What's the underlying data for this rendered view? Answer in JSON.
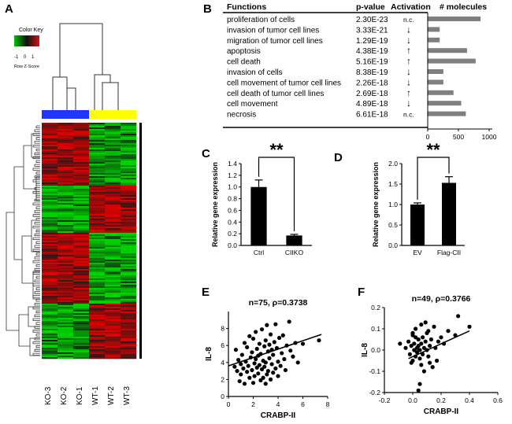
{
  "panels": {
    "A": "A",
    "B": "B",
    "C": "C",
    "D": "D",
    "E": "E",
    "F": "F"
  },
  "color_key": {
    "title": "Color Key",
    "ticks": [
      "-1",
      "0",
      "1"
    ],
    "caption": "Row Z-Score",
    "colors": {
      "low": "#00c000",
      "mid": "#111111",
      "high": "#d01515"
    }
  },
  "heatmap": {
    "samples": [
      "KO-3",
      "KO-2",
      "KO-1",
      "WT-1",
      "WT-2",
      "WT-3"
    ],
    "group_colors": {
      "KO": "#1f35ff",
      "WT": "#ffff00"
    }
  },
  "functions_table": {
    "headers": {
      "functions": "Functions",
      "pvalue": "p-value",
      "activation": "Activation",
      "molecules": "# molecules"
    },
    "rows": [
      {
        "function": "proliferation of cells",
        "pvalue": "2.30E-23",
        "activation": "n.c.",
        "molecules": 860
      },
      {
        "function": "invasion of tumor cell lines",
        "pvalue": "3.33E-21",
        "activation": "↓",
        "molecules": 195
      },
      {
        "function": "migration of tumor cell lines",
        "pvalue": "1.29E-19",
        "activation": "↓",
        "molecules": 195
      },
      {
        "function": "apoptosis",
        "pvalue": "4.38E-19",
        "activation": "↑",
        "molecules": 640
      },
      {
        "function": "cell death",
        "pvalue": "5.16E-19",
        "activation": "↑",
        "molecules": 780
      },
      {
        "function": "invasion of cells",
        "pvalue": "8.38E-19",
        "activation": "↓",
        "molecules": 255
      },
      {
        "function": "cell movement of tumor cell lines",
        "pvalue": "2.26E-18",
        "activation": "↓",
        "molecules": 255
      },
      {
        "function": "cell death of tumor cell lines",
        "pvalue": "2.69E-18",
        "activation": "↑",
        "molecules": 420
      },
      {
        "function": "cell movement",
        "pvalue": "4.89E-18",
        "activation": "↓",
        "molecules": 545
      },
      {
        "function": "necrosis",
        "pvalue": "6.61E-18",
        "activation": "n.c.",
        "molecules": 620
      }
    ],
    "axis_ticks": [
      "0",
      "500",
      "1000"
    ]
  },
  "chart_data": [
    {
      "type": "bar",
      "panel": "C",
      "categories": [
        "Ctrl",
        "CIIKO"
      ],
      "values": [
        1.0,
        0.17
      ],
      "errors": [
        0.12,
        0.02
      ],
      "ylabel": "Relative gene expression",
      "ylim": [
        0,
        1.4
      ],
      "yticks": [
        "0.0",
        "0.2",
        "0.4",
        "0.6",
        "0.8",
        "1.0",
        "1.2",
        "1.4"
      ],
      "significance": "**"
    },
    {
      "type": "bar",
      "panel": "D",
      "categories": [
        "EV",
        "Flag-CII"
      ],
      "values": [
        1.0,
        1.53
      ],
      "errors": [
        0.04,
        0.15
      ],
      "ylabel": "Relative gene expression",
      "ylim": [
        0,
        2.0
      ],
      "yticks": [
        "0.0",
        "0.5",
        "1.0",
        "1.5",
        "2.0"
      ],
      "significance": "**"
    },
    {
      "type": "scatter",
      "panel": "E",
      "title": "n=75, ρ=0.3738",
      "xlabel": "CRABP-II",
      "ylabel": "IL-8",
      "xlim": [
        0,
        8
      ],
      "ylim": [
        0,
        10
      ],
      "xticks": [
        "0",
        "2",
        "4",
        "6",
        "8"
      ],
      "yticks": [
        "0",
        "2",
        "4",
        "6",
        "8"
      ],
      "fit": {
        "x0": 0.0,
        "y0": 3.6,
        "x1": 7.5,
        "y1": 7.3
      },
      "points": [
        [
          0.5,
          3.5
        ],
        [
          0.6,
          5.5
        ],
        [
          0.7,
          3.0
        ],
        [
          0.8,
          4.3
        ],
        [
          0.9,
          1.8
        ],
        [
          1.0,
          3.8
        ],
        [
          1.0,
          2.6
        ],
        [
          1.1,
          4.9
        ],
        [
          1.2,
          3.3
        ],
        [
          1.3,
          1.5
        ],
        [
          1.3,
          6.3
        ],
        [
          1.4,
          4.1
        ],
        [
          1.5,
          2.9
        ],
        [
          1.5,
          5.8
        ],
        [
          1.6,
          3.6
        ],
        [
          1.7,
          7.1
        ],
        [
          1.7,
          2.2
        ],
        [
          1.8,
          4.6
        ],
        [
          1.9,
          3.1
        ],
        [
          1.9,
          5.2
        ],
        [
          2.0,
          1.6
        ],
        [
          2.0,
          6.8
        ],
        [
          2.1,
          3.9
        ],
        [
          2.1,
          2.4
        ],
        [
          2.2,
          4.4
        ],
        [
          2.2,
          7.6
        ],
        [
          2.3,
          3.4
        ],
        [
          2.3,
          5.6
        ],
        [
          2.4,
          2.7
        ],
        [
          2.4,
          4.8
        ],
        [
          2.5,
          6.2
        ],
        [
          2.5,
          3.7
        ],
        [
          2.6,
          1.9
        ],
        [
          2.6,
          5.0
        ],
        [
          2.7,
          3.2
        ],
        [
          2.7,
          7.9
        ],
        [
          2.8,
          4.2
        ],
        [
          2.8,
          2.2
        ],
        [
          2.9,
          5.9
        ],
        [
          2.9,
          3.5
        ],
        [
          3.0,
          6.6
        ],
        [
          3.0,
          4.0
        ],
        [
          3.1,
          2.6
        ],
        [
          3.1,
          8.4
        ],
        [
          3.2,
          5.3
        ],
        [
          3.2,
          3.0
        ],
        [
          3.3,
          6.1
        ],
        [
          3.3,
          4.5
        ],
        [
          3.4,
          2.0
        ],
        [
          3.4,
          7.3
        ],
        [
          3.5,
          3.8
        ],
        [
          3.5,
          5.5
        ],
        [
          3.6,
          4.9
        ],
        [
          3.6,
          2.8
        ],
        [
          3.7,
          6.4
        ],
        [
          3.8,
          3.3
        ],
        [
          3.8,
          8.5
        ],
        [
          3.9,
          5.7
        ],
        [
          4.0,
          4.1
        ],
        [
          4.0,
          2.4
        ],
        [
          4.1,
          6.9
        ],
        [
          4.2,
          3.6
        ],
        [
          4.3,
          5.1
        ],
        [
          4.4,
          7.2
        ],
        [
          4.5,
          4.4
        ],
        [
          4.6,
          3.1
        ],
        [
          4.7,
          6.0
        ],
        [
          4.9,
          8.8
        ],
        [
          5.0,
          5.4
        ],
        [
          5.2,
          4.7
        ],
        [
          5.4,
          6.3
        ],
        [
          5.6,
          4.0
        ],
        [
          6.0,
          6.2
        ],
        [
          7.3,
          6.6
        ],
        [
          3.0,
          1.5
        ]
      ]
    },
    {
      "type": "scatter",
      "panel": "F",
      "title": "n=49, ρ=0.3766",
      "xlabel": "CRABP-II",
      "ylabel": "IL-8",
      "xlim": [
        -0.2,
        0.6
      ],
      "ylim": [
        -0.2,
        0.2
      ],
      "xticks": [
        "-0.2",
        "0.0",
        "0.2",
        "0.4",
        "0.6"
      ],
      "yticks": [
        "-0.2",
        "-0.1",
        "0.0",
        "0.1",
        "0.2"
      ],
      "fit": {
        "x0": -0.03,
        "y0": -0.04,
        "x1": 0.4,
        "y1": 0.09
      },
      "points": [
        [
          -0.09,
          0.03
        ],
        [
          -0.05,
          0.01
        ],
        [
          -0.03,
          0.04
        ],
        [
          -0.02,
          -0.02
        ],
        [
          -0.01,
          0.02
        ],
        [
          0.0,
          0.07
        ],
        [
          0.0,
          -0.05
        ],
        [
          0.01,
          0.0
        ],
        [
          0.01,
          0.03
        ],
        [
          0.02,
          -0.03
        ],
        [
          0.02,
          0.1
        ],
        [
          0.03,
          0.01
        ],
        [
          0.03,
          -0.01
        ],
        [
          0.04,
          0.05
        ],
        [
          0.04,
          0.02
        ],
        [
          0.05,
          -0.04
        ],
        [
          0.05,
          0.0
        ],
        [
          0.06,
          0.03
        ],
        [
          0.06,
          0.12
        ],
        [
          0.07,
          -0.02
        ],
        [
          0.07,
          0.06
        ],
        [
          0.08,
          0.01
        ],
        [
          0.08,
          -0.1
        ],
        [
          0.09,
          0.04
        ],
        [
          0.1,
          0.0
        ],
        [
          0.1,
          0.08
        ],
        [
          0.11,
          -0.03
        ],
        [
          0.12,
          0.02
        ],
        [
          0.13,
          0.05
        ],
        [
          0.14,
          -0.08
        ],
        [
          0.15,
          0.11
        ],
        [
          0.16,
          0.01
        ],
        [
          0.17,
          -0.05
        ],
        [
          0.2,
          0.06
        ],
        [
          0.22,
          0.03
        ],
        [
          0.25,
          0.09
        ],
        [
          0.3,
          0.07
        ],
        [
          0.32,
          0.16
        ],
        [
          0.4,
          0.11
        ],
        [
          0.04,
          -0.19
        ],
        [
          0.05,
          -0.16
        ],
        [
          0.0,
          0.08
        ],
        [
          0.02,
          0.06
        ],
        [
          0.09,
          0.13
        ],
        [
          -0.01,
          -0.06
        ],
        [
          0.12,
          -0.06
        ],
        [
          0.18,
          0.04
        ],
        [
          0.06,
          -0.07
        ],
        [
          0.11,
          0.09
        ]
      ]
    }
  ]
}
